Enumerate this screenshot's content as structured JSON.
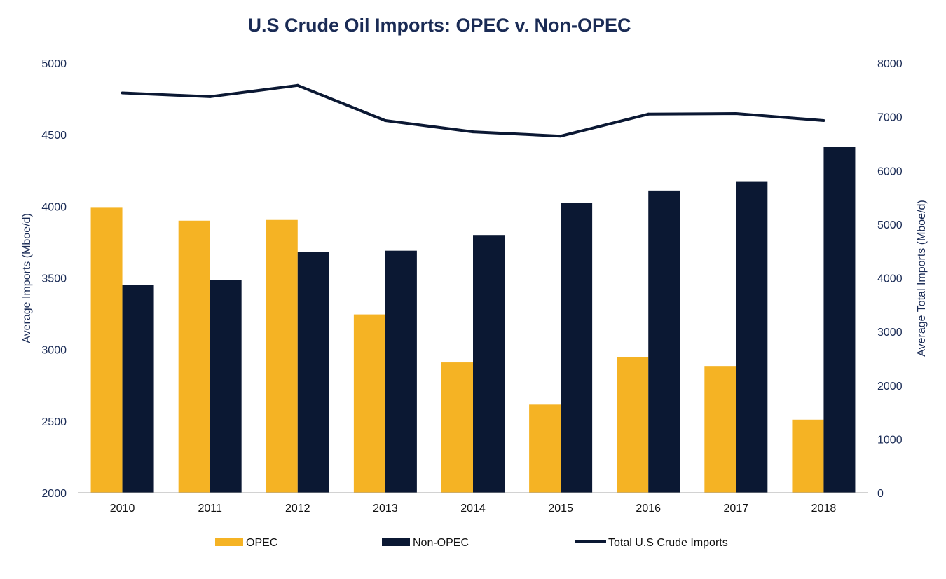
{
  "chart_data": {
    "type": "bar",
    "title": "U.S Crude Oil Imports: OPEC v. Non-OPEC",
    "categories": [
      "2010",
      "2011",
      "2012",
      "2013",
      "2014",
      "2015",
      "2016",
      "2017",
      "2018"
    ],
    "ylabel": "Average Imports (Mboe/d)",
    "ylabel_right": "Average Total Imports (Mboe/d)",
    "ylim": [
      2000,
      5000
    ],
    "yticks": [
      2000,
      2500,
      3000,
      3500,
      4000,
      4500,
      5000
    ],
    "ylim_right": [
      0,
      8000
    ],
    "yticks_right": [
      0,
      1000,
      2000,
      3000,
      4000,
      5000,
      6000,
      7000,
      8000
    ],
    "grid": false,
    "legend_position": "bottom",
    "series": [
      {
        "name": "OPEC",
        "type": "bar",
        "axis": "left",
        "color": "#F5B324",
        "values": [
          3990,
          3900,
          3905,
          3245,
          2910,
          2615,
          2945,
          2885,
          2510
        ]
      },
      {
        "name": "Non-OPEC",
        "type": "bar",
        "axis": "left",
        "color": "#0B1833",
        "values": [
          3450,
          3485,
          3680,
          3690,
          3800,
          4025,
          4110,
          4175,
          4415
        ]
      },
      {
        "name": "Total U.S Crude Imports",
        "type": "line",
        "axis": "right",
        "color": "#0B1833",
        "values": [
          7445,
          7375,
          7585,
          6930,
          6720,
          6640,
          7050,
          7060,
          6930
        ]
      }
    ]
  }
}
